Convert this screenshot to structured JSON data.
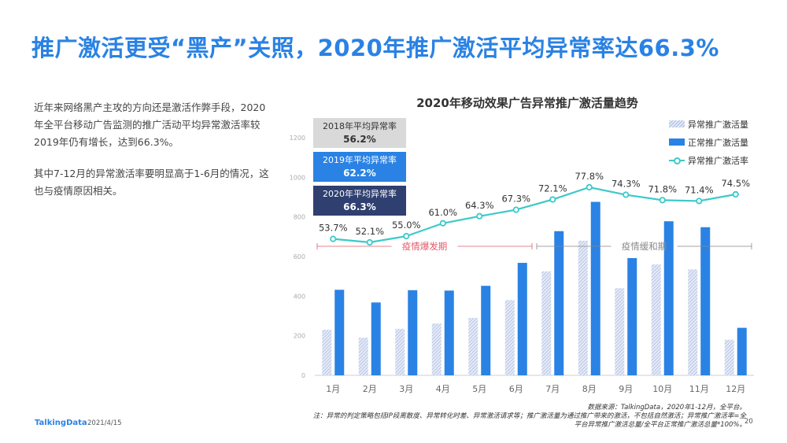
{
  "page": {
    "title": "推广激活更受“黑产”关照，2020年推广激活平均异常率达66.3%",
    "desc_p1": "近年来网络黑产主攻的方向还是激活作弊手段，2020年全平台移动广告监测的推广活动平均异常激活率较2019年仍有增长，达到66.3%。",
    "desc_p2": "其中7-12月的异常激活率要明显高于1-6月的情况，这也与疫情原因相关。",
    "source_line1": "数据来源：TalkingData，2020年1-12月，全平台。",
    "source_line2": "注：异常的判定策略包括IP段离散度、异常转化时差、异常激活请求等；推广激活量为通过推广带来的激活，不包括自然激活；异常推广激活率=全",
    "source_line3": "平台异常推广激活总量/全平台正常推广激活总量*100%。",
    "logo": "TalkingData",
    "date": "2021/4/15",
    "page_number": "20"
  },
  "yearly": [
    {
      "label": "2018年平均异常率",
      "value": "56.2%"
    },
    {
      "label": "2019年平均异常率",
      "value": "62.2%"
    },
    {
      "label": "2020年平均异常率",
      "value": "66.3%"
    }
  ],
  "chart_data": {
    "type": "bar",
    "title": "2020年移动效果广告异常推广激活量趋势",
    "categories": [
      "1月",
      "2月",
      "3月",
      "4月",
      "5月",
      "6月",
      "7月",
      "8月",
      "9月",
      "10月",
      "11月",
      "12月"
    ],
    "ylim": [
      0,
      1200
    ],
    "yticks": [
      0,
      200,
      400,
      600,
      800,
      1000,
      1200
    ],
    "series": [
      {
        "name": "异常推广激活量",
        "kind": "bar-hatched",
        "color": "#a8b8df",
        "values": [
          230,
          190,
          235,
          262,
          290,
          380,
          525,
          680,
          440,
          560,
          535,
          180
        ]
      },
      {
        "name": "正常推广激活量",
        "kind": "bar",
        "color": "#2a82e4",
        "values": [
          432,
          368,
          430,
          428,
          452,
          568,
          728,
          876,
          592,
          778,
          748,
          240
        ]
      },
      {
        "name": "异常推广激活率",
        "kind": "line",
        "color": "#3cc9c9",
        "values": [
          53.7,
          52.1,
          55.0,
          61.0,
          64.3,
          67.3,
          72.1,
          77.8,
          74.3,
          71.8,
          71.4,
          74.5
        ],
        "labels": [
          "53.7%",
          "52.1%",
          "55.0%",
          "61.0%",
          "64.3%",
          "67.3%",
          "72.1%",
          "77.8%",
          "74.3%",
          "71.8%",
          "71.4%",
          "74.5%"
        ]
      }
    ],
    "annotations": [
      {
        "text": "疫情爆发期",
        "from": "1月",
        "to": "6月",
        "color": "#e05a6a"
      },
      {
        "text": "疫情缓和期",
        "from": "7月",
        "to": "12月",
        "color": "#888888"
      }
    ],
    "grid": false,
    "legend_position": "top-right"
  }
}
